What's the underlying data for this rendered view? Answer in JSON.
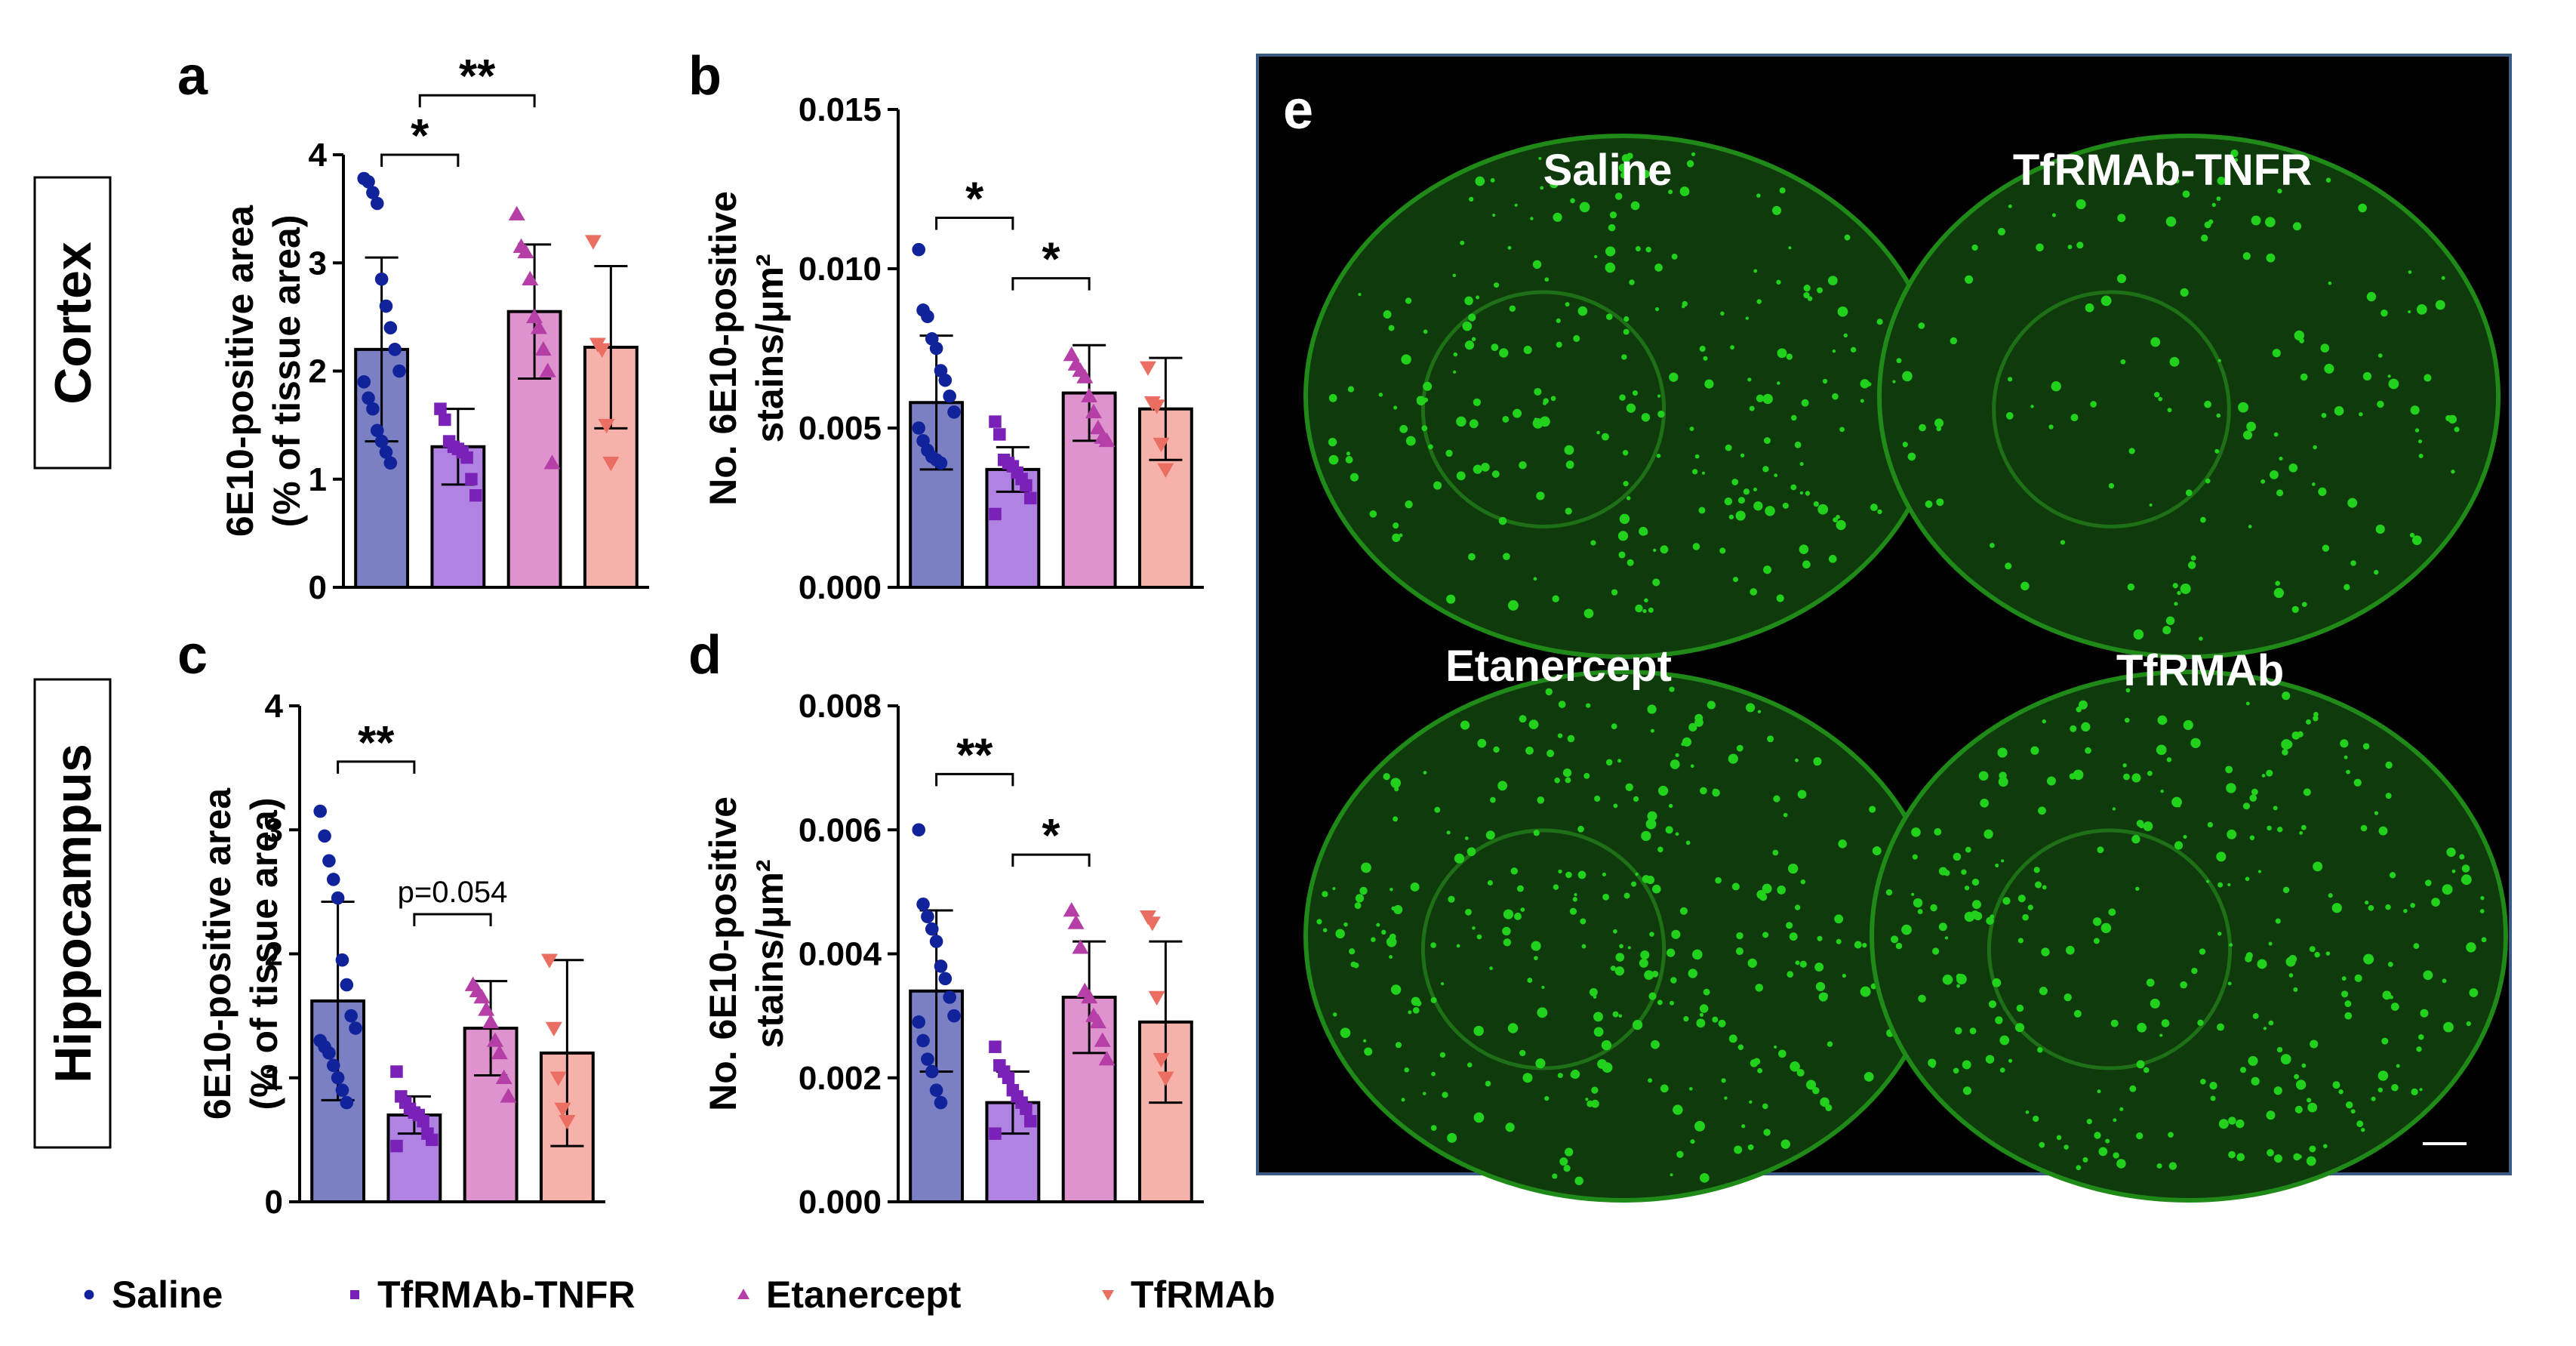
{
  "region_labels": {
    "cortex": "Cortex",
    "hippocampus": "Hippocampus"
  },
  "groups": [
    {
      "name": "Saline",
      "marker": "circle",
      "bar_color": "#7b7fc4",
      "point_color": "#10239a"
    },
    {
      "name": "TfRMAb-TNFR",
      "marker": "square",
      "bar_color": "#b083e3",
      "point_color": "#7a22b8"
    },
    {
      "name": "Etanercept",
      "marker": "triangle-up",
      "bar_color": "#de93cf",
      "point_color": "#b53fa6"
    },
    {
      "name": "TfRMAb",
      "marker": "triangle-down",
      "bar_color": "#f5b1aa",
      "point_color": "#ea6e62"
    }
  ],
  "chart_data": [
    {
      "panel": "a",
      "type": "bar",
      "categories": [
        "Saline",
        "TfRMAb-TNFR",
        "Etanercept",
        "TfRMAb"
      ],
      "ylabel": [
        "6E10-positive area",
        "(% of tissue area)"
      ],
      "ylim": [
        0,
        4
      ],
      "yticks": [
        "0",
        "1",
        "2",
        "3",
        "4"
      ],
      "values": [
        2.2,
        1.3,
        2.55,
        2.22
      ],
      "sd": [
        0.85,
        0.35,
        0.62,
        0.75
      ],
      "points": [
        [
          3.78,
          3.75,
          3.65,
          3.55,
          2.85,
          2.6,
          2.4,
          2.2,
          2.0,
          1.9,
          1.75,
          1.65,
          1.45,
          1.35,
          1.25,
          1.15
        ],
        [
          1.65,
          1.55,
          1.35,
          1.3,
          1.28,
          1.25,
          1.2,
          1.0,
          0.85
        ],
        [
          3.45,
          3.15,
          3.1,
          2.85,
          2.5,
          2.4,
          2.2,
          2.0,
          1.15
        ],
        [
          3.2,
          2.25,
          2.2,
          1.5,
          1.15
        ]
      ],
      "significance": [
        {
          "from": 0,
          "to": 1,
          "label": "*",
          "y": 4.0
        },
        {
          "from": 0.5,
          "to": 2,
          "label": "**",
          "y": 4.55
        }
      ]
    },
    {
      "panel": "b",
      "type": "bar",
      "categories": [
        "Saline",
        "TfRMAb-TNFR",
        "Etanercept",
        "TfRMAb"
      ],
      "ylabel": [
        "No. 6E10-positive",
        "stains/μm²"
      ],
      "ylim": [
        0,
        0.015
      ],
      "yticks": [
        "0.000",
        "0.005",
        "0.010",
        "0.015"
      ],
      "values": [
        0.0058,
        0.0037,
        0.0061,
        0.0056
      ],
      "sd": [
        0.0021,
        0.0007,
        0.0015,
        0.0016
      ],
      "points": [
        [
          0.0106,
          0.0087,
          0.0085,
          0.0078,
          0.0075,
          0.0068,
          0.0065,
          0.006,
          0.0055,
          0.005,
          0.0046,
          0.0043,
          0.0041,
          0.004,
          0.0039
        ],
        [
          0.0052,
          0.0048,
          0.004,
          0.0039,
          0.0038,
          0.0036,
          0.0034,
          0.0032,
          0.0028,
          0.0023
        ],
        [
          0.0073,
          0.007,
          0.0068,
          0.0066,
          0.006,
          0.0055,
          0.005,
          0.0047,
          0.0046
        ],
        [
          0.0069,
          0.0058,
          0.0057,
          0.0045,
          0.0037
        ]
      ],
      "significance": [
        {
          "from": 0,
          "to": 1,
          "label": "*",
          "y": 0.0116
        },
        {
          "from": 1,
          "to": 2,
          "label": "*",
          "y": 0.0097
        }
      ]
    },
    {
      "panel": "c",
      "type": "bar",
      "categories": [
        "Saline",
        "TfRMAb-TNFR",
        "Etanercept",
        "TfRMAb"
      ],
      "ylabel": [
        "6E10-positive area",
        "(% of tissue area)"
      ],
      "ylim": [
        0,
        4
      ],
      "yticks": [
        "0",
        "1",
        "2",
        "3",
        "4"
      ],
      "values": [
        1.62,
        0.7,
        1.4,
        1.2
      ],
      "sd": [
        0.8,
        0.15,
        0.38,
        0.75
      ],
      "points": [
        [
          3.15,
          2.95,
          2.75,
          2.6,
          2.45,
          1.95,
          1.75,
          1.5,
          1.4,
          1.3,
          1.25,
          1.2,
          1.1,
          1.0,
          0.9,
          0.8
        ],
        [
          1.05,
          0.85,
          0.8,
          0.75,
          0.72,
          0.7,
          0.65,
          0.55,
          0.5,
          0.45
        ],
        [
          1.75,
          1.7,
          1.65,
          1.55,
          1.45,
          1.3,
          1.2,
          1.0,
          0.85
        ],
        [
          1.95,
          1.4,
          1.0,
          0.75,
          0.65
        ]
      ],
      "significance": [
        {
          "from": 0,
          "to": 1,
          "label": "**",
          "y": 3.55
        },
        {
          "from": 1,
          "to": 2,
          "label": "p=0.054",
          "y": 2.32
        }
      ]
    },
    {
      "panel": "d",
      "type": "bar",
      "categories": [
        "Saline",
        "TfRMAb-TNFR",
        "Etanercept",
        "TfRMAb"
      ],
      "ylabel": [
        "No. 6E10-positive",
        "stains/μm²"
      ],
      "ylim": [
        0,
        0.008
      ],
      "yticks": [
        "0.000",
        "0.002",
        "0.004",
        "0.006",
        "0.008"
      ],
      "values": [
        0.0034,
        0.0016,
        0.0033,
        0.0029
      ],
      "sd": [
        0.0013,
        0.0005,
        0.0009,
        0.0013
      ],
      "points": [
        [
          0.006,
          0.0048,
          0.0046,
          0.0044,
          0.0042,
          0.0038,
          0.0036,
          0.0033,
          0.003,
          0.0029,
          0.0026,
          0.0023,
          0.0021,
          0.0018,
          0.0016
        ],
        [
          0.0025,
          0.0022,
          0.0021,
          0.002,
          0.0018,
          0.0017,
          0.0016,
          0.0015,
          0.0013,
          0.0011
        ],
        [
          0.0047,
          0.0045,
          0.0041,
          0.0034,
          0.0033,
          0.003,
          0.0029,
          0.0026,
          0.0023
        ],
        [
          0.0046,
          0.0045,
          0.0033,
          0.0023,
          0.002
        ]
      ],
      "significance": [
        {
          "from": 0,
          "to": 1,
          "label": "**",
          "y": 0.0069
        },
        {
          "from": 1,
          "to": 2,
          "label": "*",
          "y": 0.0056
        }
      ]
    }
  ],
  "micrograph": {
    "panel": "e",
    "background": "#000000",
    "border_color": "#3b5a86",
    "stain_color": "#22d11c",
    "labels": [
      "Saline",
      "TfRMAb-TNFR",
      "Etanercept",
      "TfRMAb"
    ]
  }
}
